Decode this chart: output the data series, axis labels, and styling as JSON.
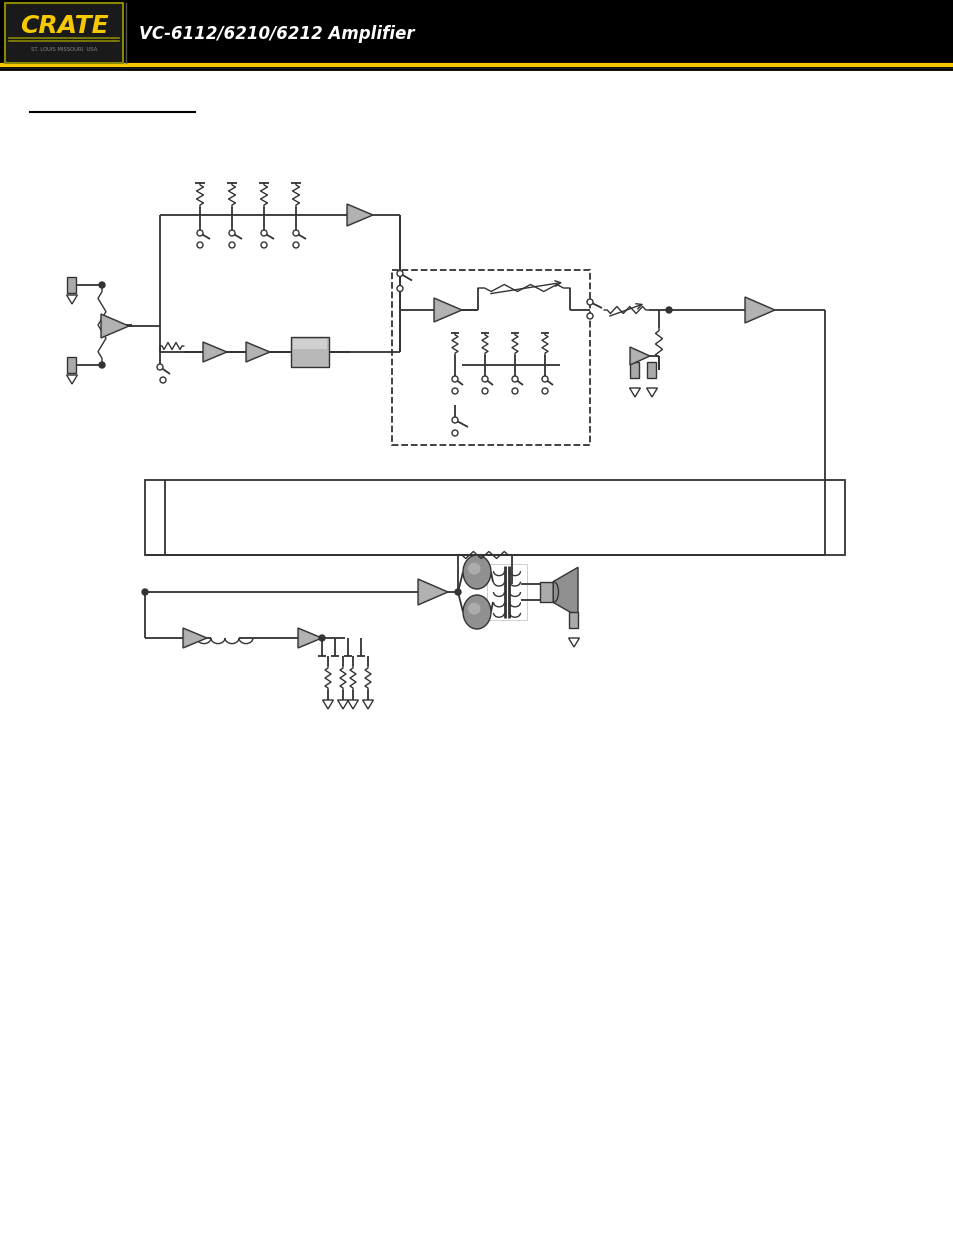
{
  "title": "VC-6112/6210/6212 Amplifier",
  "bg_color": "#ffffff",
  "header_bar_color": "#f5c800",
  "line_color": "#333333",
  "component_fill_dark": "#999999",
  "component_fill_light": "#cccccc",
  "component_fill_mid": "#aaaaaa",
  "fig_width": 9.54,
  "fig_height": 12.35,
  "dpi": 100
}
